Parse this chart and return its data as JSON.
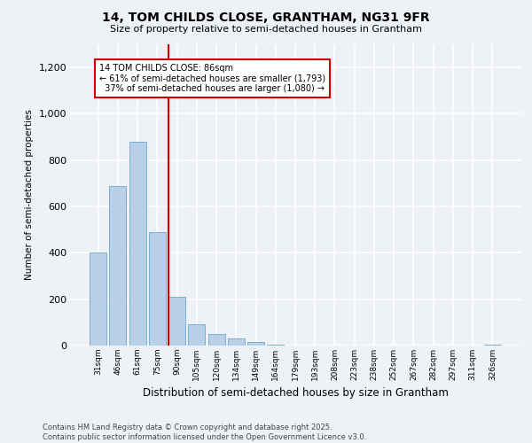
{
  "title_line1": "14, TOM CHILDS CLOSE, GRANTHAM, NG31 9FR",
  "title_line2": "Size of property relative to semi-detached houses in Grantham",
  "xlabel": "Distribution of semi-detached houses by size in Grantham",
  "ylabel": "Number of semi-detached properties",
  "categories": [
    "31sqm",
    "46sqm",
    "61sqm",
    "75sqm",
    "90sqm",
    "105sqm",
    "120sqm",
    "134sqm",
    "149sqm",
    "164sqm",
    "179sqm",
    "193sqm",
    "208sqm",
    "223sqm",
    "238sqm",
    "252sqm",
    "267sqm",
    "282sqm",
    "297sqm",
    "311sqm",
    "326sqm"
  ],
  "values": [
    400,
    690,
    880,
    490,
    210,
    90,
    50,
    30,
    15,
    5,
    0,
    0,
    0,
    0,
    0,
    0,
    0,
    0,
    0,
    0,
    5
  ],
  "bar_color": "#b8d0e8",
  "bar_edge_color": "#7bafd4",
  "ylim": [
    0,
    1300
  ],
  "yticks": [
    0,
    200,
    400,
    600,
    800,
    1000,
    1200
  ],
  "property_label": "14 TOM CHILDS CLOSE: 86sqm",
  "pct_smaller": 61,
  "count_smaller": 1793,
  "pct_larger": 37,
  "count_larger": 1080,
  "vline_color": "#cc0000",
  "annotation_box_color": "#cc0000",
  "background_color": "#eef2f7",
  "grid_color": "#ffffff",
  "footer_line1": "Contains HM Land Registry data © Crown copyright and database right 2025.",
  "footer_line2": "Contains public sector information licensed under the Open Government Licence v3.0.",
  "vline_x": 3.57
}
